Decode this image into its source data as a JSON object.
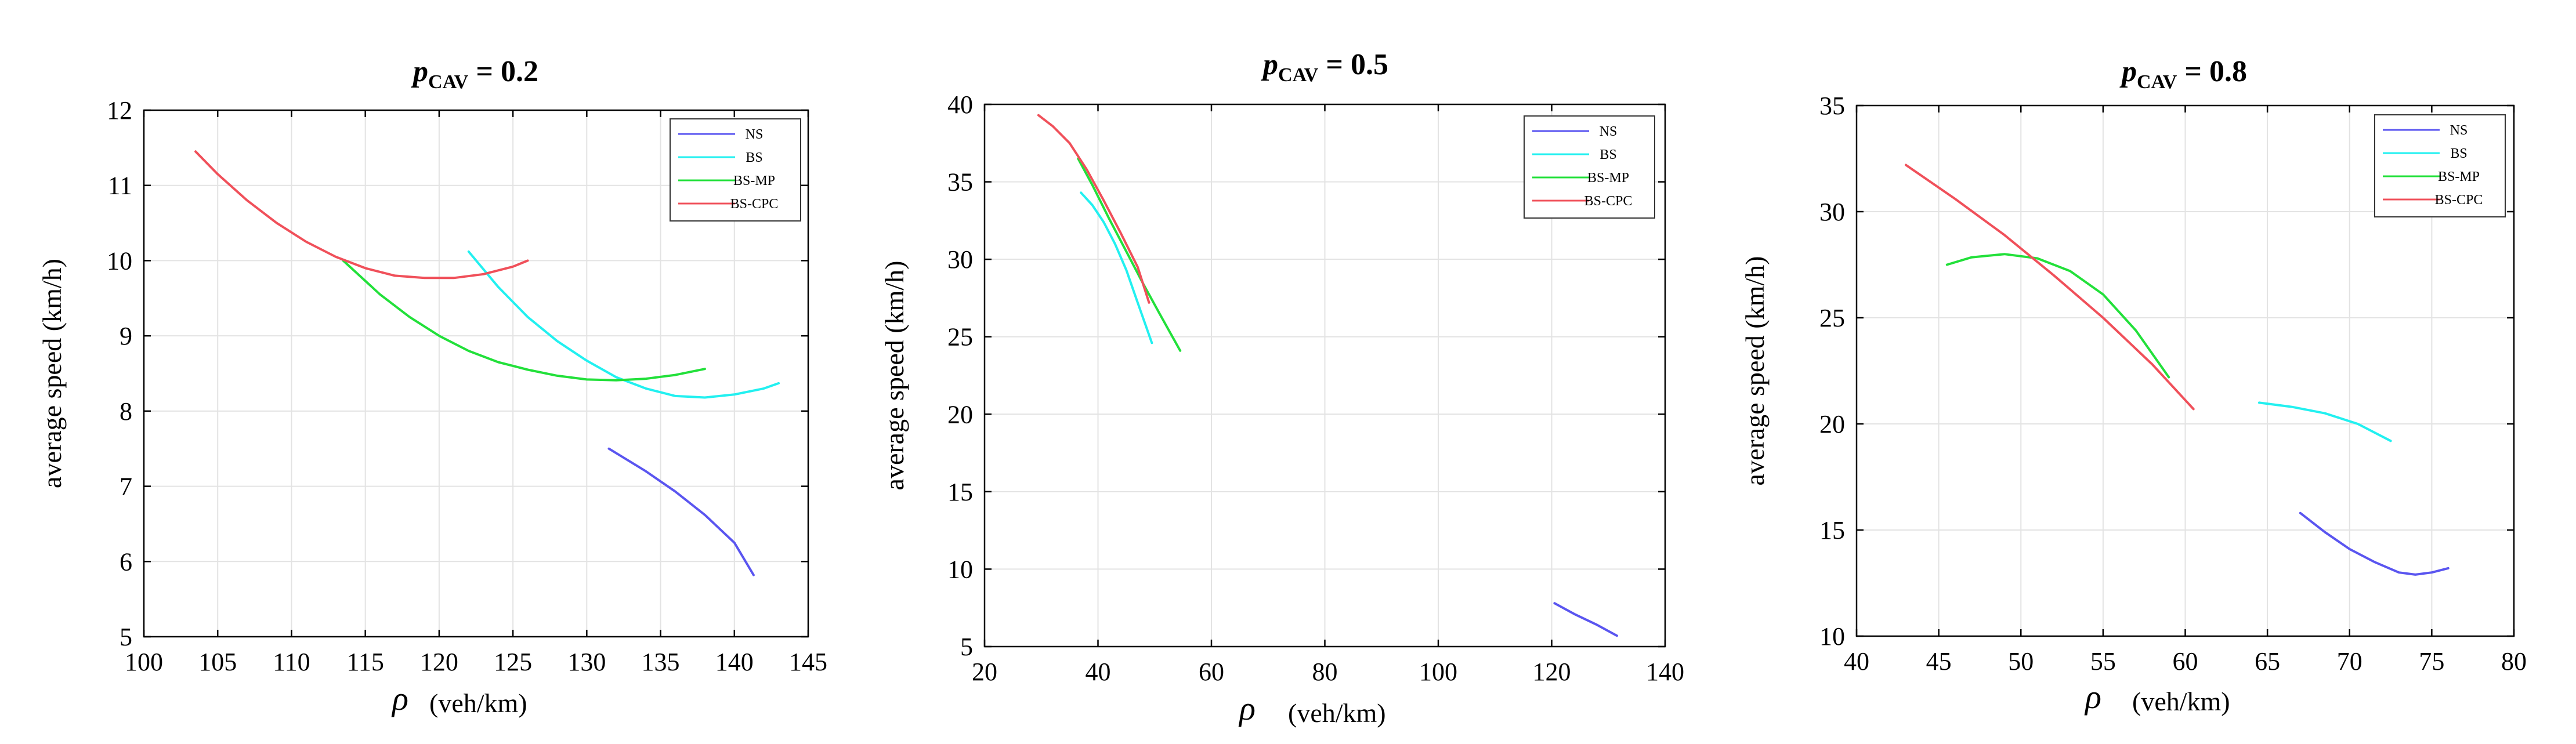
{
  "chart_data": [
    {
      "type": "line",
      "title": {
        "prefix": "p",
        "subscript": "CAV",
        "suffix": " = 0.2"
      },
      "xlabel": "(veh/km)",
      "xlabel_symbol": "ρ",
      "ylabel": "average speed (km/h)",
      "xlim": [
        100,
        145
      ],
      "ylim": [
        5,
        12
      ],
      "xticks": [
        100,
        105,
        110,
        115,
        120,
        125,
        130,
        135,
        140,
        145
      ],
      "yticks": [
        5,
        6,
        7,
        8,
        9,
        10,
        11,
        12
      ],
      "grid": true,
      "legend_position": "top-right",
      "series": [
        {
          "name": "NS",
          "color": "#5a55f0",
          "points": [
            [
              131.5,
              7.5
            ],
            [
              134,
              7.2
            ],
            [
              136,
              6.93
            ],
            [
              138,
              6.62
            ],
            [
              140,
              6.25
            ],
            [
              141.3,
              5.82
            ]
          ]
        },
        {
          "name": "BS",
          "color": "#22f0f0",
          "points": [
            [
              122,
              10.12
            ],
            [
              124,
              9.65
            ],
            [
              126,
              9.25
            ],
            [
              128,
              8.93
            ],
            [
              130,
              8.67
            ],
            [
              132,
              8.45
            ],
            [
              134,
              8.3
            ],
            [
              136,
              8.2
            ],
            [
              138,
              8.18
            ],
            [
              140,
              8.22
            ],
            [
              142,
              8.3
            ],
            [
              143,
              8.37
            ]
          ]
        },
        {
          "name": "BS-MP",
          "color": "#22e03a",
          "points": [
            [
              113.5,
              10.0
            ],
            [
              116,
              9.55
            ],
            [
              118,
              9.25
            ],
            [
              120,
              9.0
            ],
            [
              122,
              8.8
            ],
            [
              124,
              8.65
            ],
            [
              126,
              8.55
            ],
            [
              128,
              8.47
            ],
            [
              130,
              8.42
            ],
            [
              132,
              8.41
            ],
            [
              134,
              8.43
            ],
            [
              136,
              8.48
            ],
            [
              138,
              8.56
            ]
          ]
        },
        {
          "name": "BS-CPC",
          "color": "#f0505a",
          "points": [
            [
              103.5,
              11.45
            ],
            [
              105,
              11.15
            ],
            [
              107,
              10.8
            ],
            [
              109,
              10.5
            ],
            [
              111,
              10.25
            ],
            [
              113,
              10.05
            ],
            [
              115,
              9.9
            ],
            [
              117,
              9.8
            ],
            [
              119,
              9.77
            ],
            [
              121,
              9.77
            ],
            [
              123,
              9.82
            ],
            [
              125,
              9.92
            ],
            [
              126,
              10.0
            ]
          ]
        }
      ]
    },
    {
      "type": "line",
      "title": {
        "prefix": "p",
        "subscript": "CAV",
        "suffix": " = 0.5"
      },
      "xlabel": "(veh/km)",
      "xlabel_symbol": "ρ",
      "ylabel": "average speed (km/h)",
      "xlim": [
        20,
        140
      ],
      "ylim": [
        5,
        40
      ],
      "xticks": [
        20,
        40,
        60,
        80,
        100,
        120,
        140
      ],
      "yticks": [
        5,
        10,
        15,
        20,
        25,
        30,
        35,
        40
      ],
      "grid": true,
      "legend_position": "top-right",
      "series": [
        {
          "name": "NS",
          "color": "#5a55f0",
          "points": [
            [
              120.5,
              7.8
            ],
            [
              124,
              7.1
            ],
            [
              128,
              6.4
            ],
            [
              131.5,
              5.7
            ]
          ]
        },
        {
          "name": "BS",
          "color": "#22f0f0",
          "points": [
            [
              37,
              34.3
            ],
            [
              39,
              33.5
            ],
            [
              41,
              32.4
            ],
            [
              43,
              31.0
            ],
            [
              45,
              29.3
            ],
            [
              47,
              27.2
            ],
            [
              49.5,
              24.6
            ]
          ]
        },
        {
          "name": "BS-MP",
          "color": "#22e03a",
          "points": [
            [
              36.5,
              36.5
            ],
            [
              39,
              34.8
            ],
            [
              42,
              32.6
            ],
            [
              45,
              30.5
            ],
            [
              48,
              28.4
            ],
            [
              51,
              26.4
            ],
            [
              54.5,
              24.1
            ]
          ]
        },
        {
          "name": "BS-CPC",
          "color": "#f0505a",
          "points": [
            [
              29.5,
              39.3
            ],
            [
              32,
              38.6
            ],
            [
              35,
              37.5
            ],
            [
              38,
              35.8
            ],
            [
              41,
              33.8
            ],
            [
              44,
              31.7
            ],
            [
              47,
              29.5
            ],
            [
              49,
              27.2
            ]
          ]
        }
      ]
    },
    {
      "type": "line",
      "title": {
        "prefix": "p",
        "subscript": "CAV",
        "suffix": " = 0.8"
      },
      "xlabel": "(veh/km)",
      "xlabel_symbol": "ρ",
      "ylabel": "average speed (km/h)",
      "xlim": [
        40,
        80
      ],
      "ylim": [
        10,
        35
      ],
      "xticks": [
        40,
        45,
        50,
        55,
        60,
        65,
        70,
        75,
        80
      ],
      "yticks": [
        10,
        15,
        20,
        25,
        30,
        35
      ],
      "grid": true,
      "legend_position": "top-right",
      "series": [
        {
          "name": "NS",
          "color": "#5a55f0",
          "points": [
            [
              67,
              15.8
            ],
            [
              68.5,
              14.9
            ],
            [
              70,
              14.1
            ],
            [
              71.5,
              13.5
            ],
            [
              73,
              13.0
            ],
            [
              74,
              12.9
            ],
            [
              75,
              13.0
            ],
            [
              76,
              13.2
            ]
          ]
        },
        {
          "name": "BS",
          "color": "#22f0f0",
          "points": [
            [
              64.5,
              21.0
            ],
            [
              66.5,
              20.8
            ],
            [
              68.5,
              20.5
            ],
            [
              70.5,
              20.0
            ],
            [
              72.5,
              19.2
            ]
          ]
        },
        {
          "name": "BS-MP",
          "color": "#22e03a",
          "points": [
            [
              45.5,
              27.5
            ],
            [
              47,
              27.85
            ],
            [
              49,
              28.0
            ],
            [
              51,
              27.8
            ],
            [
              53,
              27.2
            ],
            [
              55,
              26.1
            ],
            [
              57,
              24.4
            ],
            [
              59,
              22.2
            ]
          ]
        },
        {
          "name": "BS-CPC",
          "color": "#f0505a",
          "points": [
            [
              43,
              32.2
            ],
            [
              46,
              30.6
            ],
            [
              49,
              28.9
            ],
            [
              52,
              27.0
            ],
            [
              55,
              25.0
            ],
            [
              58,
              22.8
            ],
            [
              60.5,
              20.7
            ]
          ]
        }
      ]
    }
  ]
}
